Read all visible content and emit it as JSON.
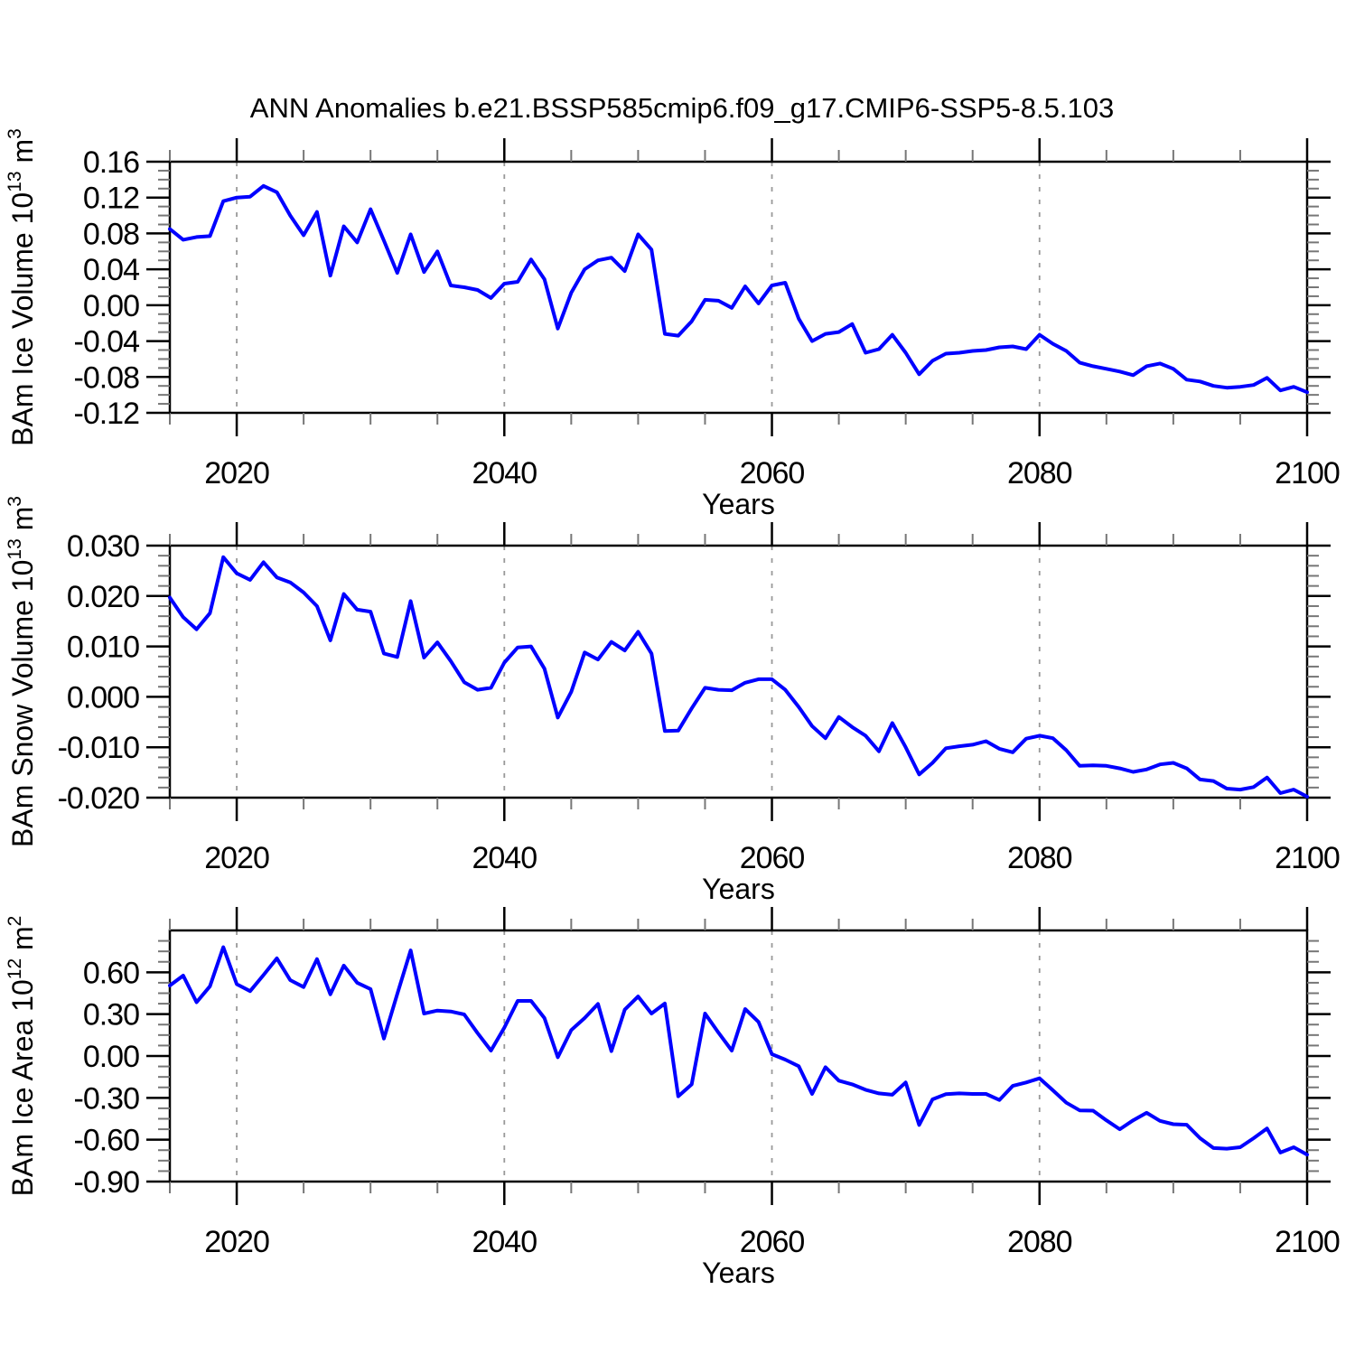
{
  "title": "ANN Anomalies b.e21.BSSP585cmip6.f09_g17.CMIP6-SSP5-8.5.103",
  "style": {
    "line_color": "#0000ff",
    "grid_color": "#999999",
    "axis_color": "#000000",
    "minor_tick_color": "#777777",
    "background": "#ffffff"
  },
  "x_axis": {
    "label": "Years",
    "range": [
      2015,
      2100
    ],
    "tick_values": [
      2020,
      2040,
      2060,
      2080,
      2100
    ],
    "tick_labels": [
      "2020",
      "2040",
      "2060",
      "2080",
      "2100"
    ],
    "minor_step": 5,
    "gridlines": [
      2020,
      2040,
      2060,
      2080
    ],
    "years": [
      2015,
      2016,
      2017,
      2018,
      2019,
      2020,
      2021,
      2022,
      2023,
      2024,
      2025,
      2026,
      2027,
      2028,
      2029,
      2030,
      2031,
      2032,
      2033,
      2034,
      2035,
      2036,
      2037,
      2038,
      2039,
      2040,
      2041,
      2042,
      2043,
      2044,
      2045,
      2046,
      2047,
      2048,
      2049,
      2050,
      2051,
      2052,
      2053,
      2054,
      2055,
      2056,
      2057,
      2058,
      2059,
      2060,
      2061,
      2062,
      2063,
      2064,
      2065,
      2066,
      2067,
      2068,
      2069,
      2070,
      2071,
      2072,
      2073,
      2074,
      2075,
      2076,
      2077,
      2078,
      2079,
      2080,
      2081,
      2082,
      2083,
      2084,
      2085,
      2086,
      2087,
      2088,
      2089,
      2090,
      2091,
      2092,
      2093,
      2094,
      2095,
      2096,
      2097,
      2098,
      2099,
      2100
    ]
  },
  "chart_data": [
    {
      "type": "line",
      "name": "ice-volume",
      "ylabel": "BAm Ice Volume 10^13 m^3",
      "ylabel_parts": [
        {
          "text": "BAm Ice Volume 10",
          "sup": false
        },
        {
          "text": "13",
          "sup": true
        },
        {
          "text": " m",
          "sup": false
        },
        {
          "text": "3",
          "sup": true
        }
      ],
      "ylim": [
        -0.12,
        0.16
      ],
      "ytick_values": [
        0.16,
        0.12,
        0.08,
        0.04,
        0.0,
        -0.04,
        -0.08,
        -0.12
      ],
      "ytick_labels": [
        "0.16",
        "0.12",
        "0.08",
        "0.04",
        "0.00",
        "-0.04",
        "-0.08",
        "-0.12"
      ],
      "y_minor_step": 0.01,
      "values": [
        0.085,
        0.073,
        0.076,
        0.077,
        0.116,
        0.12,
        0.121,
        0.133,
        0.126,
        0.1,
        0.078,
        0.104,
        0.033,
        0.088,
        0.07,
        0.107,
        0.072,
        0.036,
        0.079,
        0.037,
        0.06,
        0.022,
        0.02,
        0.017,
        0.008,
        0.024,
        0.026,
        0.051,
        0.029,
        -0.026,
        0.014,
        0.04,
        0.05,
        0.053,
        0.038,
        0.079,
        0.062,
        -0.032,
        -0.034,
        -0.018,
        0.006,
        0.005,
        -0.003,
        0.021,
        0.002,
        0.022,
        0.025,
        -0.015,
        -0.04,
        -0.032,
        -0.03,
        -0.021,
        -0.053,
        -0.049,
        -0.033,
        -0.053,
        -0.077,
        -0.062,
        -0.054,
        -0.053,
        -0.051,
        -0.05,
        -0.047,
        -0.046,
        -0.049,
        -0.033,
        -0.043,
        -0.051,
        -0.064,
        -0.068,
        -0.071,
        -0.074,
        -0.078,
        -0.068,
        -0.065,
        -0.071,
        -0.083,
        -0.085,
        -0.09,
        -0.092,
        -0.091,
        -0.089,
        -0.081,
        -0.095,
        -0.091,
        -0.097
      ]
    },
    {
      "type": "line",
      "name": "snow-volume",
      "ylabel": "BAm Snow Volume 10^13 m^3",
      "ylabel_parts": [
        {
          "text": "BAm Snow Volume 10",
          "sup": false
        },
        {
          "text": "13",
          "sup": true
        },
        {
          "text": " m",
          "sup": false
        },
        {
          "text": "3",
          "sup": true
        }
      ],
      "ylim": [
        -0.02,
        0.03
      ],
      "ytick_values": [
        0.03,
        0.02,
        0.01,
        0.0,
        -0.01,
        -0.02
      ],
      "ytick_labels": [
        "0.030",
        "0.020",
        "0.010",
        "0.000",
        "-0.010",
        "-0.020"
      ],
      "y_minor_step": 0.002,
      "values": [
        0.0197,
        0.0158,
        0.0134,
        0.0166,
        0.0277,
        0.0245,
        0.0232,
        0.0267,
        0.0237,
        0.0227,
        0.0207,
        0.018,
        0.0112,
        0.0204,
        0.0173,
        0.0169,
        0.0086,
        0.0079,
        0.019,
        0.0078,
        0.0108,
        0.0071,
        0.0029,
        0.0014,
        0.0018,
        0.0068,
        0.0098,
        0.01,
        0.0056,
        -0.0041,
        0.001,
        0.0088,
        0.0074,
        0.0109,
        0.0092,
        0.0129,
        0.0086,
        -0.0068,
        -0.0067,
        -0.0023,
        0.0018,
        0.0014,
        0.0013,
        0.0028,
        0.0035,
        0.0035,
        0.0014,
        -0.002,
        -0.0058,
        -0.0082,
        -0.004,
        -0.006,
        -0.0077,
        -0.0108,
        -0.0052,
        -0.01,
        -0.0154,
        -0.0131,
        -0.0102,
        -0.0098,
        -0.0095,
        -0.0088,
        -0.0103,
        -0.011,
        -0.0083,
        -0.0077,
        -0.0082,
        -0.0106,
        -0.0137,
        -0.0136,
        -0.0137,
        -0.0142,
        -0.0149,
        -0.0144,
        -0.0134,
        -0.0131,
        -0.0142,
        -0.0164,
        -0.0167,
        -0.0182,
        -0.0184,
        -0.0179,
        -0.016,
        -0.0191,
        -0.0184,
        -0.0198
      ]
    },
    {
      "type": "line",
      "name": "ice-area",
      "ylabel": "BAm Ice Area 10^12 m^2",
      "ylabel_parts": [
        {
          "text": "BAm Ice Area 10",
          "sup": false
        },
        {
          "text": "12",
          "sup": true
        },
        {
          "text": " m",
          "sup": false
        },
        {
          "text": "2",
          "sup": true
        }
      ],
      "ylim": [
        -0.9,
        0.9
      ],
      "ytick_values": [
        0.6,
        0.3,
        0.0,
        -0.3,
        -0.6,
        -0.9
      ],
      "ytick_labels": [
        "0.60",
        "0.30",
        "0.00",
        "-0.30",
        "-0.60",
        "-0.90"
      ],
      "y_minor_step": 0.075,
      "values": [
        0.505,
        0.576,
        0.385,
        0.5,
        0.78,
        0.515,
        0.465,
        0.58,
        0.7,
        0.544,
        0.494,
        0.695,
        0.442,
        0.648,
        0.525,
        0.48,
        0.125,
        0.445,
        0.757,
        0.304,
        0.326,
        0.319,
        0.298,
        0.164,
        0.039,
        0.203,
        0.395,
        0.395,
        0.272,
        -0.009,
        0.186,
        0.272,
        0.373,
        0.035,
        0.332,
        0.427,
        0.304,
        0.376,
        -0.289,
        -0.203,
        0.304,
        0.168,
        0.039,
        0.337,
        0.244,
        0.013,
        -0.026,
        -0.073,
        -0.272,
        -0.08,
        -0.177,
        -0.203,
        -0.242,
        -0.268,
        -0.278,
        -0.19,
        -0.494,
        -0.311,
        -0.274,
        -0.268,
        -0.272,
        -0.272,
        -0.315,
        -0.214,
        -0.19,
        -0.16,
        -0.246,
        -0.335,
        -0.39,
        -0.392,
        -0.461,
        -0.525,
        -0.461,
        -0.407,
        -0.465,
        -0.489,
        -0.493,
        -0.589,
        -0.66,
        -0.664,
        -0.654,
        -0.589,
        -0.519,
        -0.692,
        -0.654,
        -0.707
      ]
    }
  ]
}
